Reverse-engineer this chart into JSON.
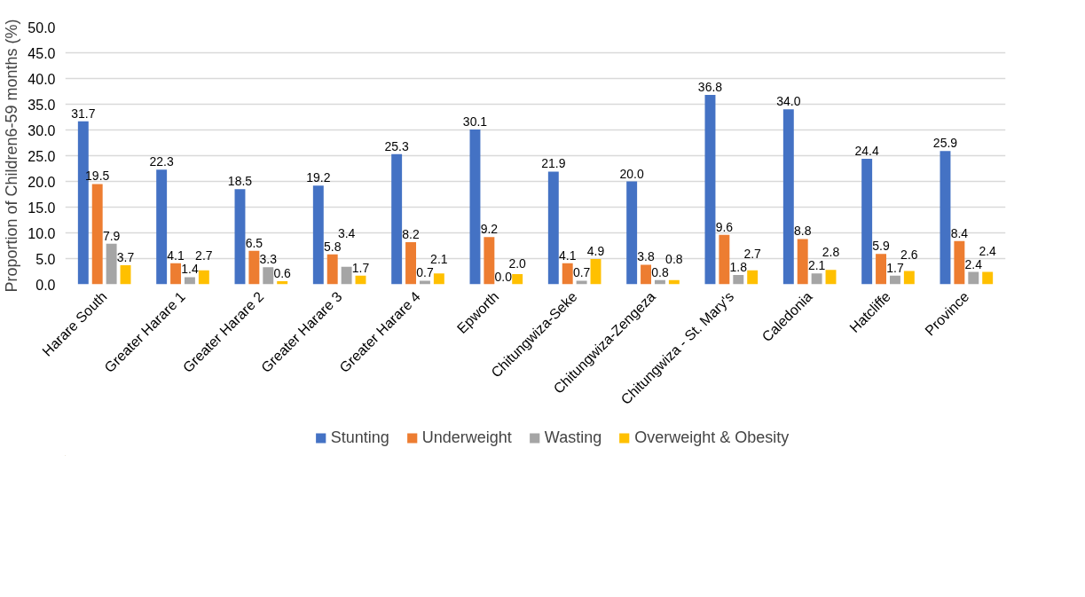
{
  "chart_data": {
    "type": "bar",
    "ylabel": "Proportion of Children6-59 months (%)",
    "categories": [
      "Harare South",
      "Greater Harare 1",
      "Greater Harare 2",
      "Greater Harare 3",
      "Greater Harare 4",
      "Epworth",
      "Chitungwiza-Seke",
      "Chitungwiza-Zengeza",
      "Chitungwiza - St. Mary's",
      "Caledonia",
      "Hatcliffe",
      "Province"
    ],
    "series": [
      {
        "name": "Stunting",
        "color": "#4472c4",
        "values": [
          31.7,
          22.3,
          18.5,
          19.2,
          25.3,
          30.1,
          21.9,
          20.0,
          36.8,
          34.0,
          24.4,
          25.9
        ],
        "value_labels": [
          "31.7",
          "22.3",
          "18.5",
          "19.2",
          "25.3",
          "30.1",
          "21.9",
          "20.0",
          "36.8",
          "34.0",
          "24.4",
          "25.9"
        ]
      },
      {
        "name": "Underweight",
        "color": "#ed7d31",
        "values": [
          19.5,
          4.1,
          6.5,
          5.8,
          8.2,
          9.2,
          4.1,
          3.8,
          9.6,
          8.8,
          5.9,
          8.4
        ],
        "value_labels": [
          "19.5",
          "4.1",
          "6.5",
          "5.8",
          "8.2",
          "9.2",
          "4.1",
          "3.8",
          "9.6",
          "8.8",
          "5.9",
          "8.4"
        ]
      },
      {
        "name": "Wasting",
        "color": "#a5a5a5",
        "values": [
          7.9,
          1.4,
          3.3,
          3.4,
          0.7,
          0.0,
          0.7,
          0.8,
          1.8,
          2.1,
          1.7,
          2.4
        ],
        "value_labels": [
          "7.9",
          "1.4",
          "3.3",
          "3.4",
          "0.7",
          "0.0",
          "0.7",
          "0.8",
          "1.8",
          "2.1",
          "1.7",
          "2.4"
        ]
      },
      {
        "name": "Overweight & Obesity",
        "color": "#ffc000",
        "values": [
          3.7,
          2.7,
          0.6,
          1.7,
          2.1,
          2.0,
          4.9,
          0.8,
          2.7,
          2.8,
          2.6,
          2.4
        ],
        "value_labels": [
          "3.7",
          "2.7",
          "0.6",
          "1.7",
          "2.1",
          "2.0",
          "4.9",
          "0.8",
          "2.7",
          "2.8",
          "2.6",
          "2.4"
        ]
      }
    ],
    "ylim": [
      0,
      50
    ],
    "yticks": [
      {
        "value": 0,
        "label": "0.0"
      },
      {
        "value": 5,
        "label": "5.0"
      },
      {
        "value": 10,
        "label": "10.0"
      },
      {
        "value": 15,
        "label": "15.0"
      },
      {
        "value": 20,
        "label": "20.0"
      },
      {
        "value": 25,
        "label": "25.0"
      },
      {
        "value": 30,
        "label": "30.0"
      },
      {
        "value": 35,
        "label": "35.0"
      },
      {
        "value": 40,
        "label": "40.0"
      },
      {
        "value": 45,
        "label": "45.0"
      },
      {
        "value": 50,
        "label": "50.0"
      }
    ],
    "grid": "y",
    "legend": "bottom"
  }
}
